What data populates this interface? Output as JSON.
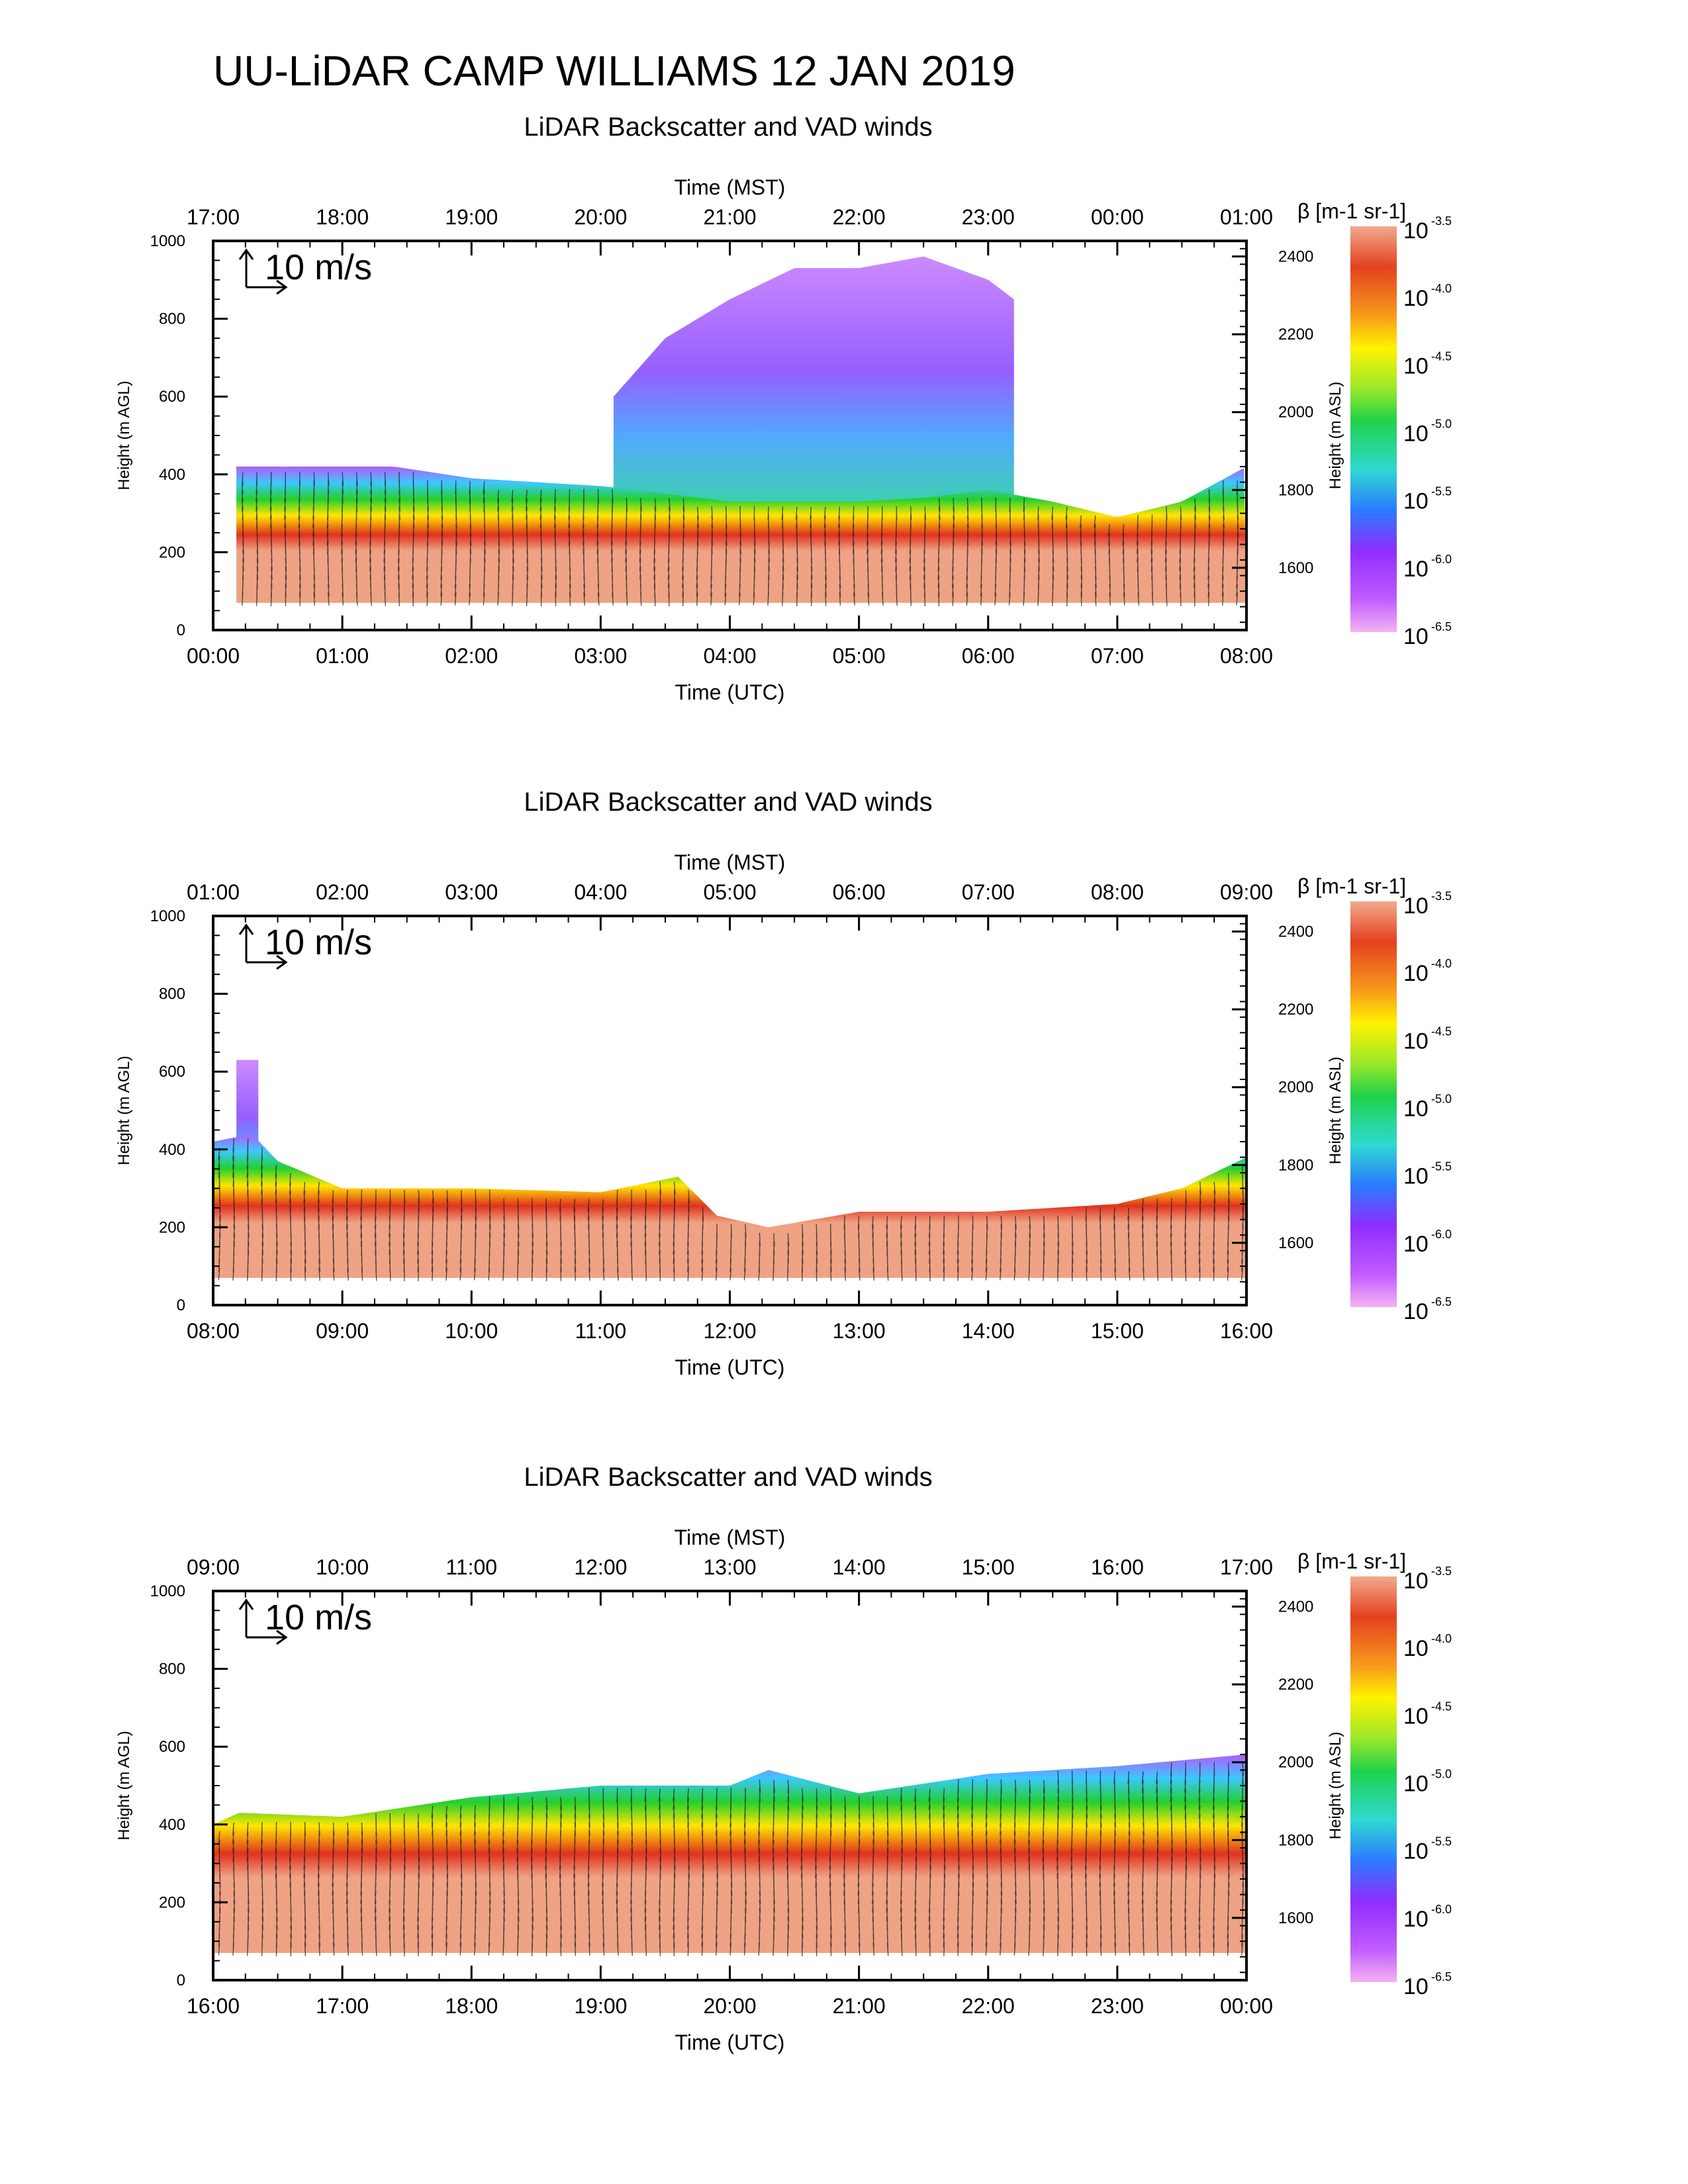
{
  "main_title": "UU-LiDAR CAMP WILLIAMS 12 JAN 2019",
  "chart_data": [
    {
      "type": "heatmap",
      "title": "LiDAR Backscatter and VAD winds",
      "xlabel_top": "Time (MST)",
      "xlabel_bottom": "Time (UTC)",
      "ylabel_left": "Height (m AGL)",
      "ylabel_right": "Height (m ASL)",
      "top_ticks": [
        "17:00",
        "18:00",
        "19:00",
        "20:00",
        "21:00",
        "22:00",
        "23:00",
        "00:00",
        "01:00"
      ],
      "bottom_ticks": [
        "00:00",
        "01:00",
        "02:00",
        "03:00",
        "04:00",
        "05:00",
        "06:00",
        "07:00",
        "08:00"
      ],
      "y_left_ticks": [
        "0",
        "200",
        "400",
        "600",
        "800",
        "1000"
      ],
      "y_right_ticks": [
        "1600",
        "1800",
        "2000",
        "2200",
        "2400"
      ],
      "ylim_left": [
        0,
        1000
      ],
      "ylim_right": [
        1440,
        2440
      ],
      "vector_label": "10 m/s",
      "colorbar_label": "β [m-1 sr-1]",
      "colorbar_exponents": [
        "-3.5",
        "-4.0",
        "-4.5",
        "-5.0",
        "-5.5",
        "-6.0",
        "-6.5"
      ],
      "aerosol_layer": {
        "x_hours": [
          0.18,
          1.4,
          2.0,
          3.0,
          3.3,
          4.0,
          5.0,
          5.5,
          6.0,
          6.5,
          7.0,
          7.5,
          8.0
        ],
        "top_m_agl": [
          420,
          420,
          390,
          370,
          360,
          330,
          330,
          340,
          360,
          330,
          290,
          330,
          420
        ]
      },
      "upper_layer": {
        "x_hours": [
          3.1,
          3.5,
          4.0,
          4.5,
          5.0,
          5.5,
          6.0,
          6.2
        ],
        "top_m_agl": [
          600,
          750,
          850,
          930,
          930,
          960,
          900,
          850
        ]
      }
    },
    {
      "type": "heatmap",
      "title": "LiDAR Backscatter and VAD winds",
      "xlabel_top": "Time (MST)",
      "xlabel_bottom": "Time (UTC)",
      "ylabel_left": "Height (m AGL)",
      "ylabel_right": "Height (m ASL)",
      "top_ticks": [
        "01:00",
        "02:00",
        "03:00",
        "04:00",
        "05:00",
        "06:00",
        "07:00",
        "08:00",
        "09:00"
      ],
      "bottom_ticks": [
        "08:00",
        "09:00",
        "10:00",
        "11:00",
        "12:00",
        "13:00",
        "14:00",
        "15:00",
        "16:00"
      ],
      "y_left_ticks": [
        "0",
        "200",
        "400",
        "600",
        "800",
        "1000"
      ],
      "y_right_ticks": [
        "1600",
        "1800",
        "2000",
        "2200",
        "2400"
      ],
      "ylim_left": [
        0,
        1000
      ],
      "ylim_right": [
        1440,
        2440
      ],
      "vector_label": "10 m/s",
      "colorbar_label": "β [m-1 sr-1]",
      "colorbar_exponents": [
        "-3.5",
        "-4.0",
        "-4.5",
        "-5.0",
        "-5.5",
        "-6.0",
        "-6.5"
      ],
      "aerosol_layer": {
        "x_hours": [
          0.0,
          0.3,
          0.5,
          1.0,
          2.0,
          3.0,
          3.6,
          3.9,
          4.3,
          5.0,
          6.0,
          7.0,
          7.5,
          8.0
        ],
        "top_m_agl": [
          420,
          440,
          370,
          300,
          300,
          290,
          330,
          230,
          200,
          240,
          240,
          260,
          300,
          380
        ]
      },
      "upper_layer": {
        "x_hours": [
          0.18,
          0.35
        ],
        "top_m_agl": [
          630,
          630
        ]
      }
    },
    {
      "type": "heatmap",
      "title": "LiDAR Backscatter and VAD winds",
      "xlabel_top": "Time (MST)",
      "xlabel_bottom": "Time (UTC)",
      "ylabel_left": "Height (m AGL)",
      "ylabel_right": "Height (m ASL)",
      "top_ticks": [
        "09:00",
        "10:00",
        "11:00",
        "12:00",
        "13:00",
        "14:00",
        "15:00",
        "16:00",
        "17:00"
      ],
      "bottom_ticks": [
        "16:00",
        "17:00",
        "18:00",
        "19:00",
        "20:00",
        "21:00",
        "22:00",
        "23:00",
        "00:00"
      ],
      "y_left_ticks": [
        "0",
        "200",
        "400",
        "600",
        "800",
        "1000"
      ],
      "y_right_ticks": [
        "1600",
        "1800",
        "2000",
        "2200",
        "2400"
      ],
      "ylim_left": [
        0,
        1000
      ],
      "ylim_right": [
        1440,
        2440
      ],
      "vector_label": "10 m/s",
      "colorbar_label": "β [m-1 sr-1]",
      "colorbar_exponents": [
        "-3.5",
        "-4.0",
        "-4.5",
        "-5.0",
        "-5.5",
        "-6.0",
        "-6.5"
      ],
      "aerosol_layer": {
        "x_hours": [
          0.0,
          0.2,
          1.0,
          2.0,
          3.0,
          4.0,
          4.3,
          5.0,
          6.0,
          7.0,
          8.0
        ],
        "top_m_agl": [
          400,
          430,
          420,
          470,
          500,
          500,
          540,
          480,
          530,
          550,
          580
        ]
      },
      "upper_layer": null
    }
  ]
}
